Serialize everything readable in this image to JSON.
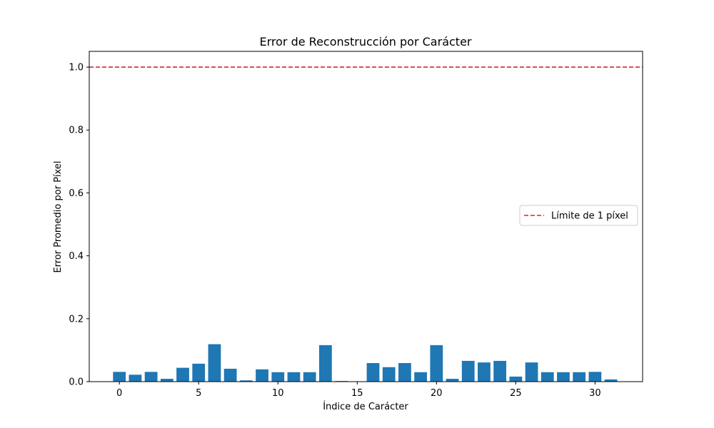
{
  "chart_data": {
    "type": "bar",
    "title": "Error de Reconstrucción por Carácter",
    "xlabel": "Índice de Carácter",
    "ylabel": "Error Promedio por Píxel",
    "x": [
      0,
      1,
      2,
      3,
      4,
      5,
      6,
      7,
      8,
      9,
      10,
      11,
      12,
      13,
      14,
      15,
      16,
      17,
      18,
      19,
      20,
      21,
      22,
      23,
      24,
      25,
      26,
      27,
      28,
      29,
      30,
      31
    ],
    "values": [
      0.031,
      0.022,
      0.031,
      0.009,
      0.044,
      0.057,
      0.119,
      0.041,
      0.004,
      0.039,
      0.03,
      0.03,
      0.03,
      0.116,
      0.002,
      0.0,
      0.059,
      0.046,
      0.059,
      0.03,
      0.116,
      0.009,
      0.066,
      0.061,
      0.066,
      0.016,
      0.061,
      0.03,
      0.03,
      0.03,
      0.031,
      0.007
    ],
    "bar_color": "#1f77b4",
    "xlim": [
      -1.9,
      33
    ],
    "ylim": [
      0,
      1.05
    ],
    "xticks": [
      0,
      5,
      10,
      15,
      20,
      25,
      30
    ],
    "xtick_labels": [
      "0",
      "5",
      "10",
      "15",
      "20",
      "25",
      "30"
    ],
    "yticks": [
      0.0,
      0.2,
      0.4,
      0.6,
      0.8,
      1.0
    ],
    "ytick_labels": [
      "0.0",
      "0.2",
      "0.4",
      "0.6",
      "0.8",
      "1.0"
    ],
    "threshold": {
      "value": 1.0,
      "label": "Límite de 1 píxel",
      "color": "#d62728",
      "style": "dashed"
    },
    "legend_position": "center-right",
    "grid": false
  }
}
